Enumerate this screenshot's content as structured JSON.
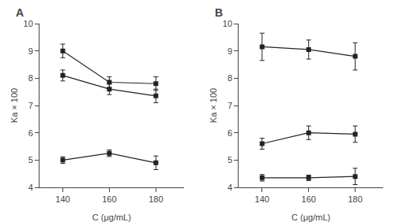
{
  "chart_data": [
    {
      "type": "line",
      "title": "A",
      "x": [
        140,
        160,
        180
      ],
      "xlabel": "C (μg/mL)",
      "ylabel": "Ka × 100",
      "xlim": [
        130,
        192
      ],
      "xticks": [
        140,
        160,
        180
      ],
      "ylim": [
        4,
        10
      ],
      "yticks": [
        4,
        5,
        6,
        7,
        8,
        9,
        10
      ],
      "grid": false,
      "series": [
        {
          "color": "#222222",
          "marker": "square",
          "values": [
            9.0,
            7.85,
            7.8
          ],
          "error": [
            0.25,
            0.2,
            0.25
          ]
        },
        {
          "color": "#222222",
          "marker": "square",
          "values": [
            8.1,
            7.6,
            7.35
          ],
          "error": [
            0.2,
            0.2,
            0.25
          ]
        },
        {
          "color": "#222222",
          "marker": "square",
          "values": [
            5.0,
            5.25,
            4.9
          ],
          "error": [
            0.12,
            0.12,
            0.25
          ]
        }
      ]
    },
    {
      "type": "line",
      "title": "B",
      "x": [
        140,
        160,
        180
      ],
      "xlabel": "C (μg/mL)",
      "ylabel": "Ka × 100",
      "xlim": [
        130,
        192
      ],
      "xticks": [
        140,
        160,
        180
      ],
      "ylim": [
        4,
        10
      ],
      "yticks": [
        4,
        5,
        6,
        7,
        8,
        9,
        10
      ],
      "grid": false,
      "series": [
        {
          "color": "#222222",
          "marker": "square",
          "values": [
            9.15,
            9.05,
            8.8
          ],
          "error": [
            0.5,
            0.35,
            0.5
          ]
        },
        {
          "color": "#222222",
          "marker": "square",
          "values": [
            5.6,
            6.0,
            5.95
          ],
          "error": [
            0.2,
            0.25,
            0.3
          ]
        },
        {
          "color": "#222222",
          "marker": "square",
          "values": [
            4.35,
            4.35,
            4.4
          ],
          "error": [
            0.12,
            0.1,
            0.3
          ]
        }
      ]
    }
  ]
}
